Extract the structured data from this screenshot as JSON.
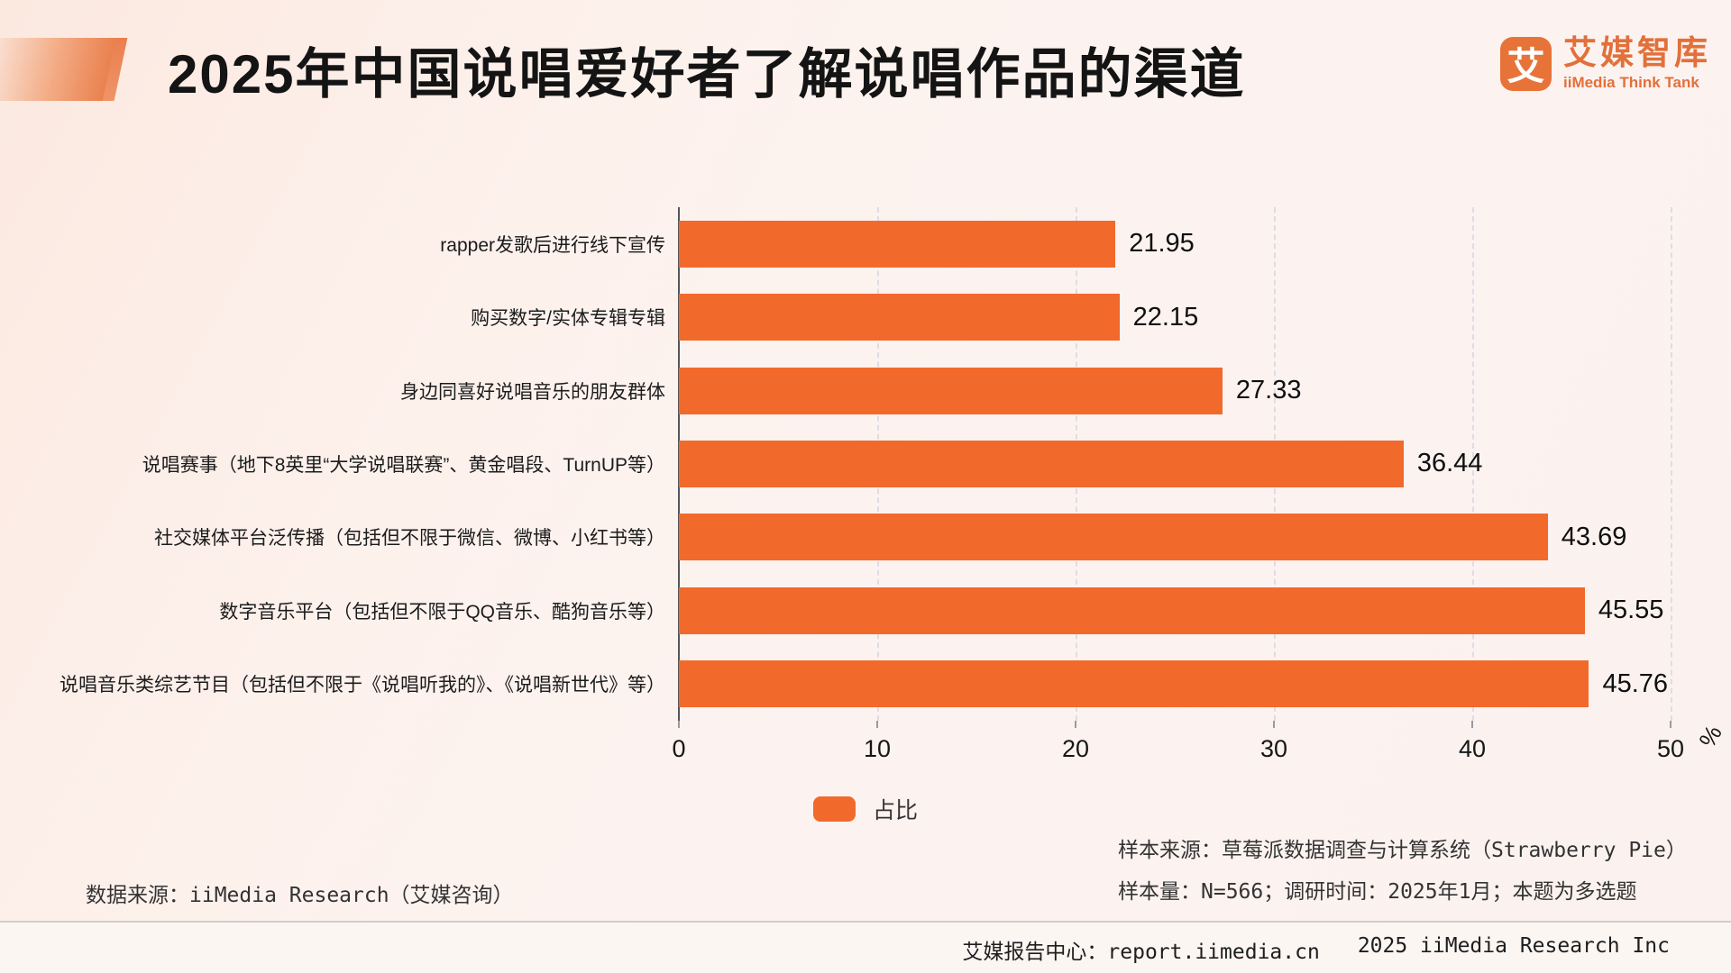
{
  "header": {
    "title": "2025年中国说唱爱好者了解说唱作品的渠道",
    "logo": {
      "icon_char": "艾",
      "brand_cn": "艾媒智库",
      "brand_en": "iiMedia Think Tank",
      "brand_color": "#e2703a"
    }
  },
  "chart_data": {
    "type": "bar",
    "orientation": "horizontal",
    "title": "2025年中国说唱爱好者了解说唱作品的渠道",
    "categories": [
      "rapper发歌后进行线下宣传",
      "购买数字/实体专辑专辑",
      "身边同喜好说唱音乐的朋友群体",
      "说唱赛事（地下8英里“大学说唱联赛”、黄金唱段、TurnUP等）",
      "社交媒体平台泛传播（包括但不限于微信、微博、小红书等）",
      "数字音乐平台（包括但不限于QQ音乐、酷狗音乐等）",
      "说唱音乐类综艺节目（包括但不限于《说唱听我的》、《说唱新世代》等）"
    ],
    "values": [
      21.95,
      22.15,
      27.33,
      36.44,
      43.69,
      45.55,
      45.76
    ],
    "series_name": "占比",
    "xlim": [
      0,
      50
    ],
    "x_ticks": [
      0,
      10,
      20,
      30,
      40,
      50
    ],
    "x_unit": "%",
    "bar_color": "#f2692c",
    "grid": true,
    "legend_position": "bottom-center"
  },
  "legend": {
    "label": "占比"
  },
  "footnotes": {
    "source_left": "数据来源：iiMedia Research（艾媒咨询）",
    "sample_source": "样本来源：草莓派数据调查与计算系统（Strawberry Pie）",
    "sample_size": "样本量：N=566；调研时间：2025年1月；本题为多选题"
  },
  "footer": {
    "report_center": "艾媒报告中心：report.iimedia.cn",
    "copyright": "2025 iiMedia Research Inc"
  }
}
